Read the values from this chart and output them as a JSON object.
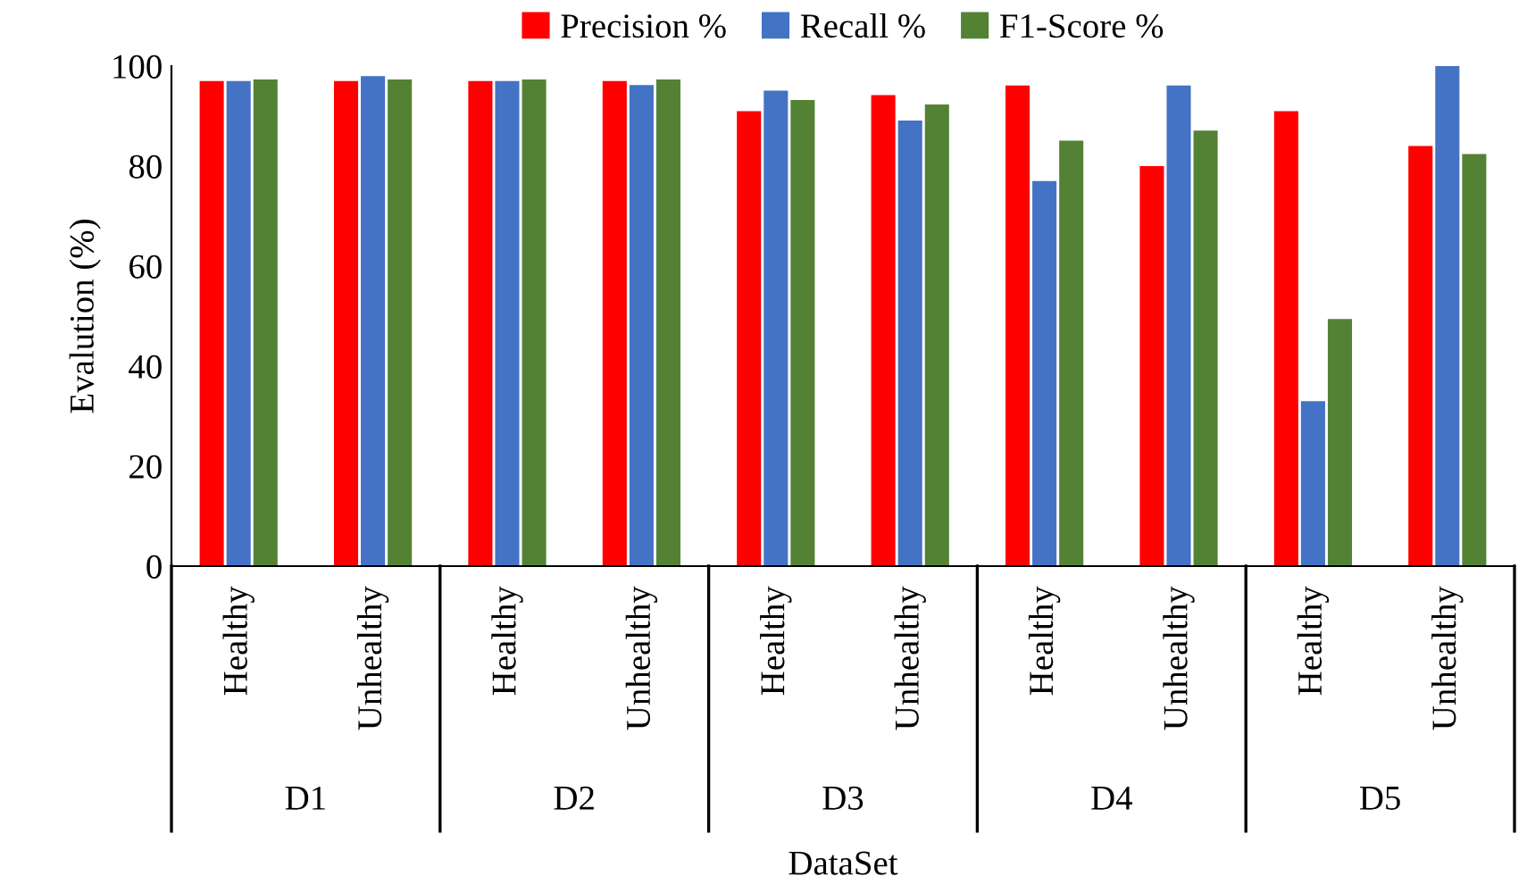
{
  "chart_data": {
    "type": "bar",
    "xlabel": "DataSet",
    "ylabel": "Evalution (%)",
    "categories": [
      "Healthy",
      "Unhealthy",
      "Healthy",
      "Unhealthy",
      "Healthy",
      "Unhealthy",
      "Healthy",
      "Unhealthy",
      "Healthy",
      "Unhealthy"
    ],
    "annotations": [
      "D1",
      "D2",
      "D3",
      "D4",
      "D5"
    ],
    "series": [
      {
        "name": "Precision %",
        "color": "#ff0000",
        "values": [
          97,
          97,
          97,
          97,
          91,
          94.2,
          96.1,
          80,
          91,
          84
        ]
      },
      {
        "name": "Recall %",
        "color": "#4472c4",
        "values": [
          97,
          98,
          97,
          96.2,
          95.1,
          89.1,
          77,
          96.1,
          33,
          100
        ]
      },
      {
        "name": "F1-Score %",
        "color": "#548235",
        "values": [
          97.3,
          97.3,
          97.3,
          97.3,
          93.2,
          92.3,
          85.1,
          87.1,
          49.4,
          82.4
        ]
      }
    ],
    "ylim": [
      0,
      100
    ],
    "yticks": [
      0,
      20,
      40,
      60,
      80,
      100
    ],
    "legend": "top",
    "grid": false
  }
}
